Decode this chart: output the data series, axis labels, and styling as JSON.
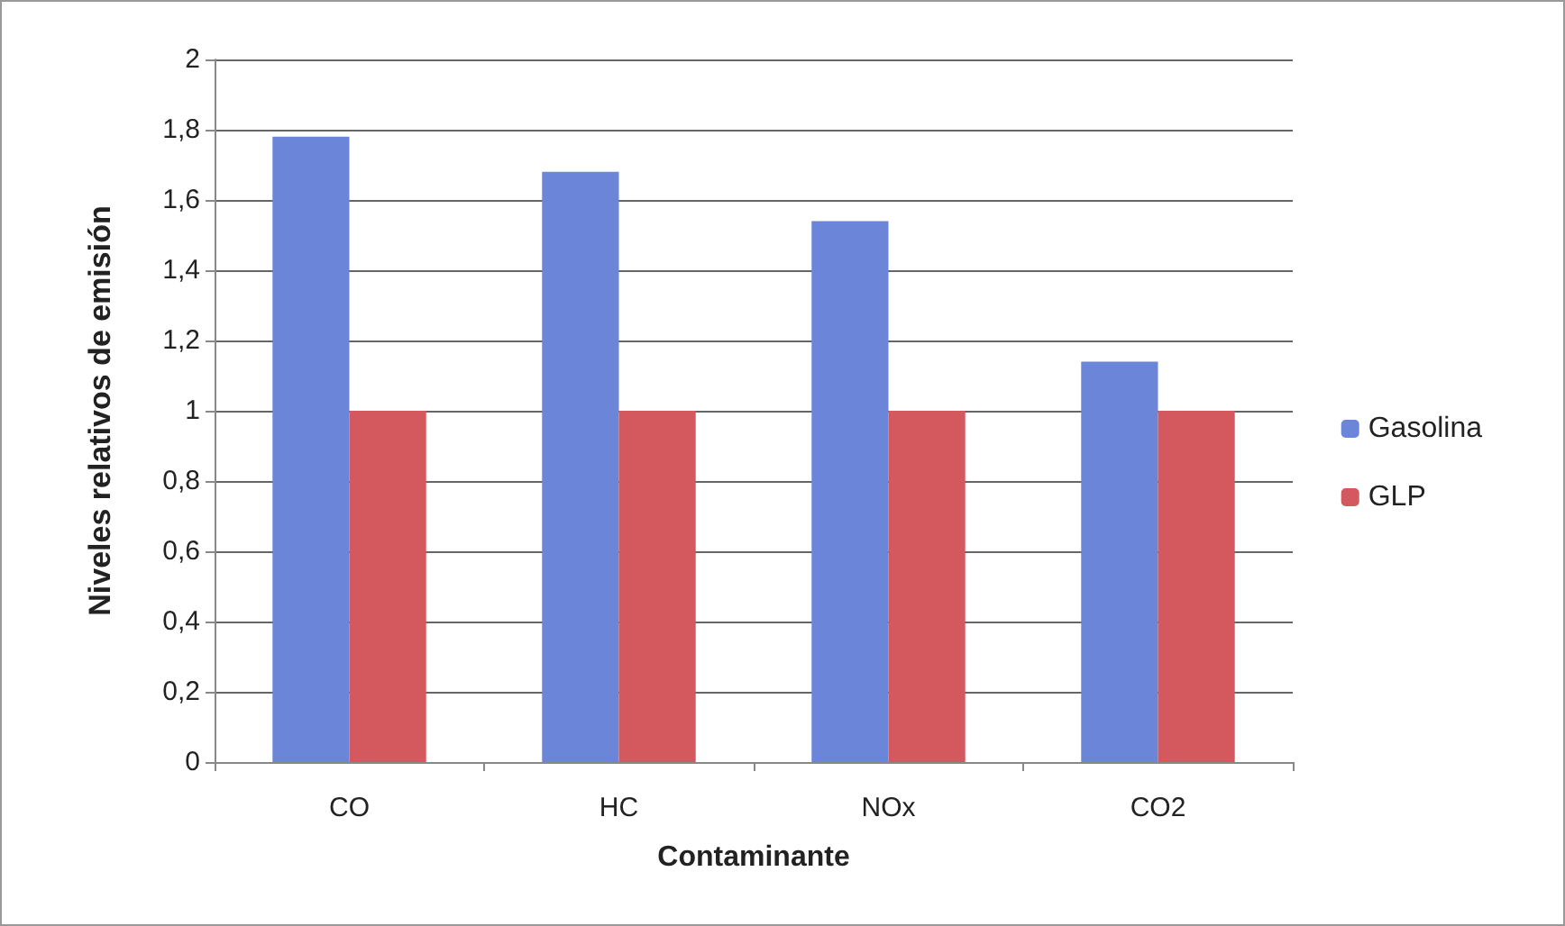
{
  "chart_data": {
    "type": "bar",
    "xlabel": "Contaminante",
    "ylabel": "Niveles relativos de emisión",
    "categories": [
      "CO",
      "HC",
      "NOx",
      "CO2"
    ],
    "series": [
      {
        "name": "Gasolina",
        "color": "#6b86d8",
        "values": [
          1.78,
          1.68,
          1.54,
          1.14
        ]
      },
      {
        "name": "GLP",
        "color": "#d4595f",
        "values": [
          1,
          1,
          1,
          1
        ]
      }
    ],
    "ylim": [
      0,
      2
    ],
    "yticks": [
      {
        "value": 0,
        "label": "0"
      },
      {
        "value": 0.2,
        "label": "0,2"
      },
      {
        "value": 0.4,
        "label": "0,4"
      },
      {
        "value": 0.6,
        "label": "0,6"
      },
      {
        "value": 0.8,
        "label": "0,8"
      },
      {
        "value": 1,
        "label": "1"
      },
      {
        "value": 1.2,
        "label": "1,2"
      },
      {
        "value": 1.4,
        "label": "1,4"
      },
      {
        "value": 1.6,
        "label": "1,6"
      },
      {
        "value": 1.8,
        "label": "1,8"
      },
      {
        "value": 2,
        "label": "2"
      }
    ],
    "grid": "y",
    "legend": "right"
  }
}
